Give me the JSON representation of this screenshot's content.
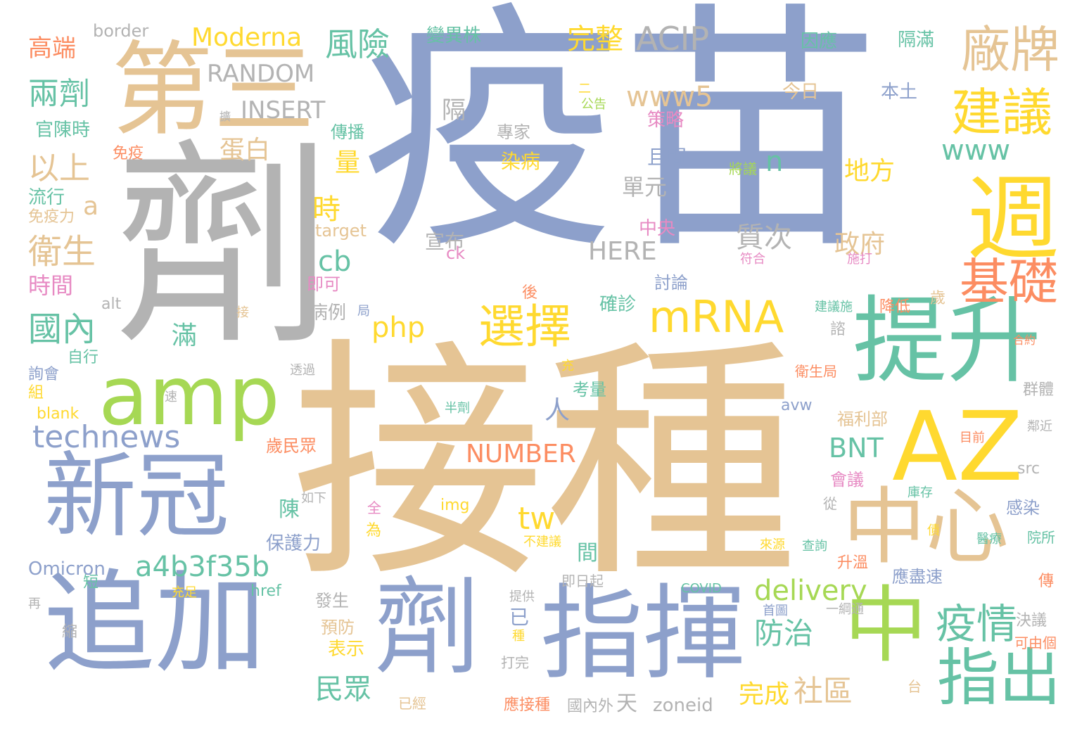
{
  "palette": {
    "blue": "#8da0cb",
    "tan": "#e5c494",
    "gray": "#b3b3b3",
    "green": "#66c2a5",
    "lime": "#a6d854",
    "yellow": "#ffd92f",
    "orange": "#fc8d62",
    "pink": "#e78ac3"
  },
  "words": [
    {
      "text": "疫苗",
      "color": "blue"
    },
    {
      "text": "接種",
      "color": "tan"
    },
    {
      "text": "劑",
      "color": "gray"
    },
    {
      "text": "第三",
      "color": "tan"
    },
    {
      "text": "amp",
      "color": "lime"
    },
    {
      "text": "新冠",
      "color": "blue"
    },
    {
      "text": "追加",
      "color": "blue"
    },
    {
      "text": "劑",
      "color": "blue"
    },
    {
      "text": "指揮",
      "color": "blue"
    },
    {
      "text": "AZ",
      "color": "yellow"
    },
    {
      "text": "中心",
      "color": "tan"
    },
    {
      "text": "中",
      "color": "lime"
    },
    {
      "text": "提升",
      "color": "green"
    },
    {
      "text": "週",
      "color": "yellow"
    },
    {
      "text": "基礎",
      "color": "orange"
    },
    {
      "text": "建議",
      "color": "yellow"
    },
    {
      "text": "廠牌",
      "color": "tan"
    },
    {
      "text": "指出",
      "color": "green"
    },
    {
      "text": "疫情",
      "color": "green"
    },
    {
      "text": "mRNA",
      "color": "yellow"
    },
    {
      "text": "選擇",
      "color": "yellow"
    },
    {
      "text": "ACIP",
      "color": "gray"
    },
    {
      "text": "www5",
      "color": "tan"
    },
    {
      "text": "www",
      "color": "green"
    },
    {
      "text": "technews",
      "color": "blue"
    },
    {
      "text": "a4b3f35b",
      "color": "green"
    },
    {
      "text": "delivery",
      "color": "lime"
    },
    {
      "text": "Moderna",
      "color": "yellow"
    },
    {
      "text": "RANDOM",
      "color": "gray"
    },
    {
      "text": "INSERT",
      "color": "gray"
    },
    {
      "text": "風險",
      "color": "green"
    },
    {
      "text": "完整",
      "color": "yellow"
    },
    {
      "text": "兩劑",
      "color": "green"
    },
    {
      "text": "以上",
      "color": "tan"
    },
    {
      "text": "衛生",
      "color": "tan"
    },
    {
      "text": "國內",
      "color": "green"
    },
    {
      "text": "高端",
      "color": "orange"
    },
    {
      "text": "border",
      "color": "gray"
    },
    {
      "text": "防治",
      "color": "green"
    },
    {
      "text": "社區",
      "color": "tan"
    },
    {
      "text": "民眾",
      "color": "green"
    },
    {
      "text": "完成",
      "color": "yellow"
    },
    {
      "text": "地方",
      "color": "yellow"
    },
    {
      "text": "政府",
      "color": "tan"
    },
    {
      "text": "質次",
      "color": "gray"
    },
    {
      "text": "NUMBER",
      "color": "orange"
    },
    {
      "text": "HERE",
      "color": "gray"
    },
    {
      "text": "php",
      "color": "yellow"
    },
    {
      "text": "cb",
      "color": "green"
    },
    {
      "text": "tw",
      "color": "yellow"
    },
    {
      "text": "BNT",
      "color": "green"
    },
    {
      "text": "滿",
      "color": "green"
    },
    {
      "text": "蛋白",
      "color": "tan"
    },
    {
      "text": "量",
      "color": "yellow"
    },
    {
      "text": "時",
      "color": "yellow"
    },
    {
      "text": "時間",
      "color": "pink"
    },
    {
      "text": "n",
      "color": "green"
    },
    {
      "text": "a",
      "color": "tan"
    },
    {
      "text": "單元",
      "color": "gray"
    },
    {
      "text": "人",
      "color": "blue"
    },
    {
      "text": "間",
      "color": "green"
    },
    {
      "text": "陳",
      "color": "green"
    },
    {
      "text": "已",
      "color": "blue"
    },
    {
      "text": "保護力",
      "color": "blue"
    },
    {
      "text": "Omicron",
      "color": "blue"
    },
    {
      "text": "變異株",
      "color": "green"
    },
    {
      "text": "隔滿",
      "color": "green"
    },
    {
      "text": "因應",
      "color": "green"
    },
    {
      "text": "今日",
      "color": "tan"
    },
    {
      "text": "本土",
      "color": "blue"
    },
    {
      "text": "隔",
      "color": "gray"
    },
    {
      "text": "傳播",
      "color": "green"
    },
    {
      "text": "專家",
      "color": "gray"
    },
    {
      "text": "策略",
      "color": "pink"
    },
    {
      "text": "且間",
      "color": "blue"
    },
    {
      "text": "將議",
      "color": "lime"
    },
    {
      "text": "染病",
      "color": "yellow"
    },
    {
      "text": "官陳時",
      "color": "green"
    },
    {
      "text": "免疫",
      "color": "orange"
    },
    {
      "text": "流行",
      "color": "green"
    },
    {
      "text": "免疫力",
      "color": "tan"
    },
    {
      "text": "target",
      "color": "tan"
    },
    {
      "text": "中央",
      "color": "pink"
    },
    {
      "text": "宣布",
      "color": "gray"
    },
    {
      "text": "ck",
      "color": "pink"
    },
    {
      "text": "符合",
      "color": "pink"
    },
    {
      "text": "施打",
      "color": "pink"
    },
    {
      "text": "即可",
      "color": "pink"
    },
    {
      "text": "討論",
      "color": "blue"
    },
    {
      "text": "alt",
      "color": "gray"
    },
    {
      "text": "接",
      "color": "tan"
    },
    {
      "text": "後",
      "color": "orange"
    },
    {
      "text": "局",
      "color": "blue"
    },
    {
      "text": "病例",
      "color": "gray"
    },
    {
      "text": "確診",
      "color": "green"
    },
    {
      "text": "建議施",
      "color": "green"
    },
    {
      "text": "降低",
      "color": "orange"
    },
    {
      "text": "歲",
      "color": "tan"
    },
    {
      "text": "諮",
      "color": "gray"
    },
    {
      "text": "合約",
      "color": "orange"
    },
    {
      "text": "自行",
      "color": "green"
    },
    {
      "text": "詢會",
      "color": "blue"
    },
    {
      "text": "透過",
      "color": "gray"
    },
    {
      "text": "充",
      "color": "yellow"
    },
    {
      "text": "考量",
      "color": "green"
    },
    {
      "text": "衛生局",
      "color": "orange"
    },
    {
      "text": "群體",
      "color": "gray"
    },
    {
      "text": "組",
      "color": "yellow"
    },
    {
      "text": "blank",
      "color": "yellow"
    },
    {
      "text": "半劑",
      "color": "green"
    },
    {
      "text": "avw",
      "color": "blue"
    },
    {
      "text": "福利部",
      "color": "tan"
    },
    {
      "text": "目前",
      "color": "orange"
    },
    {
      "text": "鄰近",
      "color": "gray"
    },
    {
      "text": "歲民眾",
      "color": "orange"
    },
    {
      "text": "src",
      "color": "gray"
    },
    {
      "text": "會議",
      "color": "pink"
    },
    {
      "text": "如下",
      "color": "gray"
    },
    {
      "text": "全",
      "color": "pink"
    },
    {
      "text": "img",
      "color": "yellow"
    },
    {
      "text": "庫存",
      "color": "green"
    },
    {
      "text": "從",
      "color": "gray"
    },
    {
      "text": "感染",
      "color": "blue"
    },
    {
      "text": "為",
      "color": "yellow"
    },
    {
      "text": "債",
      "color": "yellow"
    },
    {
      "text": "醫療",
      "color": "green"
    },
    {
      "text": "院所",
      "color": "green"
    },
    {
      "text": "不建議",
      "color": "yellow"
    },
    {
      "text": "來源",
      "color": "yellow"
    },
    {
      "text": "查詢",
      "color": "green"
    },
    {
      "text": "升溫",
      "color": "orange"
    },
    {
      "text": "應盡速",
      "color": "blue"
    },
    {
      "text": "短",
      "color": "green"
    },
    {
      "text": "即日起",
      "color": "gray"
    },
    {
      "text": "傳",
      "color": "orange"
    },
    {
      "text": "href",
      "color": "green"
    },
    {
      "text": "COVID",
      "color": "green"
    },
    {
      "text": "充足",
      "color": "yellow"
    },
    {
      "text": "再",
      "color": "gray"
    },
    {
      "text": "發生",
      "color": "gray"
    },
    {
      "text": "提供",
      "color": "gray"
    },
    {
      "text": "首圖",
      "color": "blue"
    },
    {
      "text": "一綱通",
      "color": "gray"
    },
    {
      "text": "決議",
      "color": "gray"
    },
    {
      "text": "預防",
      "color": "tan"
    },
    {
      "text": "縮",
      "color": "gray"
    },
    {
      "text": "種",
      "color": "yellow"
    },
    {
      "text": "可由個",
      "color": "orange"
    },
    {
      "text": "表示",
      "color": "yellow"
    },
    {
      "text": "打完",
      "color": "gray"
    },
    {
      "text": "台",
      "color": "tan"
    },
    {
      "text": "已經",
      "color": "tan"
    },
    {
      "text": "應接種",
      "color": "orange"
    },
    {
      "text": "國內外",
      "color": "gray"
    },
    {
      "text": "天",
      "color": "gray"
    },
    {
      "text": "zoneid",
      "color": "gray"
    },
    {
      "text": "擴",
      "color": "gray"
    },
    {
      "text": "公告",
      "color": "lime"
    },
    {
      "text": "二",
      "color": "yellow"
    },
    {
      "text": "速",
      "color": "gray"
    }
  ]
}
